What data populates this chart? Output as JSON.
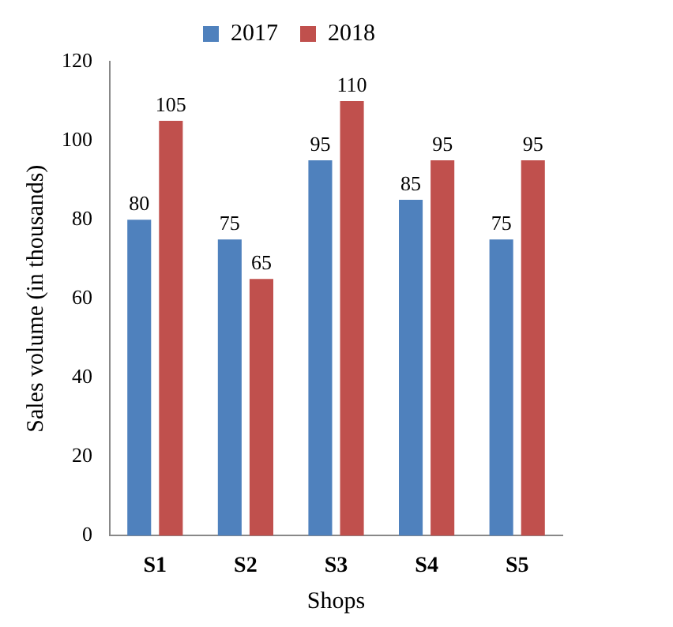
{
  "chart_data": {
    "type": "bar",
    "xlabel": "Shops",
    "ylabel": "Sales volume (in thousands)",
    "categories": [
      "S1",
      "S2",
      "S3",
      "S4",
      "S5"
    ],
    "series": [
      {
        "name": "2017",
        "color": "#4f81bd",
        "values": [
          80,
          75,
          95,
          85,
          75
        ]
      },
      {
        "name": "2018",
        "color": "#c0504d",
        "values": [
          105,
          65,
          110,
          95,
          95
        ]
      }
    ],
    "ylim": [
      0,
      120
    ],
    "yticks": [
      0,
      20,
      40,
      60,
      80,
      100,
      120
    ],
    "grid": false,
    "legend": "top",
    "data_labels": true
  }
}
